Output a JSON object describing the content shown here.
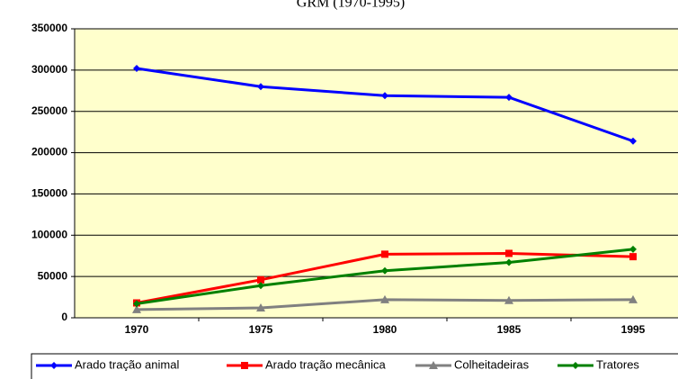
{
  "chart_data": {
    "type": "line",
    "title": "GRM (1970-1995)",
    "categories": [
      "1970",
      "1975",
      "1980",
      "1985",
      "1995"
    ],
    "series": [
      {
        "name": "Arado tração animal",
        "color": "#0000ff",
        "marker": "diamond",
        "values": [
          302000,
          280000,
          269000,
          267000,
          214000
        ]
      },
      {
        "name": "Arado tração mecânica",
        "color": "#ff0000",
        "marker": "square",
        "values": [
          18000,
          46000,
          77000,
          78000,
          74000
        ]
      },
      {
        "name": "Colheitadeiras",
        "color": "#808080",
        "marker": "triangle",
        "values": [
          10000,
          12000,
          22000,
          21000,
          22000
        ]
      },
      {
        "name": "Tratores",
        "color": "#008000",
        "marker": "diamond",
        "values": [
          17000,
          39000,
          57000,
          67000,
          83000
        ]
      }
    ],
    "ylim": [
      0,
      350000
    ],
    "yticks": [
      0,
      50000,
      100000,
      150000,
      200000,
      250000,
      300000,
      350000
    ],
    "grid": true,
    "plot_background": "#ffffcc",
    "legend": "bottom"
  }
}
